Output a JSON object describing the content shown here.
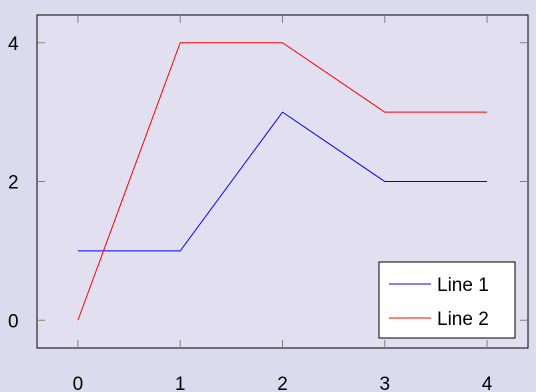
{
  "chart_data": {
    "type": "line",
    "title": "",
    "xlabel": "",
    "ylabel": "",
    "x": [
      0,
      1,
      2,
      3,
      4
    ],
    "xlim": [
      -0.4,
      4.4
    ],
    "ylim": [
      -0.4,
      4.4
    ],
    "xticks": [
      "0",
      "1",
      "2",
      "3",
      "4"
    ],
    "yticks": [
      "0",
      "2",
      "4"
    ],
    "ytick_values": [
      0,
      2,
      4
    ],
    "grid": false,
    "legend_position": "bottom-right",
    "series": [
      {
        "name": "Line 1",
        "color": "#0000ff",
        "values": [
          1,
          1,
          3,
          2,
          2
        ]
      },
      {
        "name": "Line 2",
        "color": "#ff0000",
        "values": [
          0,
          4,
          4,
          3,
          3
        ]
      }
    ],
    "colors": {
      "background": "#dcdaed",
      "plot_area": "#e2e0f0",
      "frame": "#000000",
      "tick": "#7f7f7f"
    }
  }
}
